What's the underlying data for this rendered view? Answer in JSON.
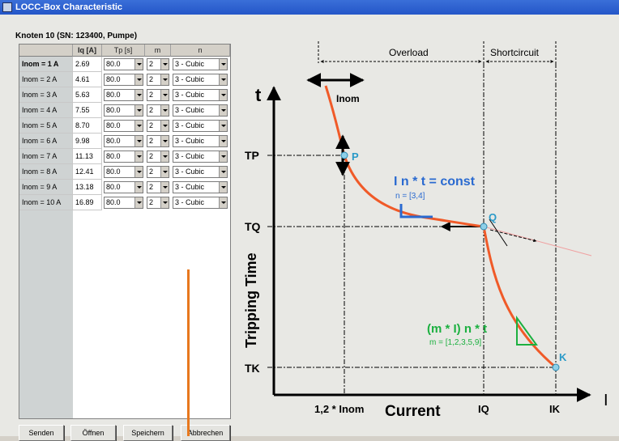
{
  "window": {
    "title": "LOCC-Box Characteristic"
  },
  "node_label": "Knoten 10 (SN: 123400, Pumpe)",
  "table": {
    "columns": [
      "Iq [A]",
      "Tp [s]",
      "m",
      "n"
    ],
    "rows": [
      {
        "label": "Inom = 1 A",
        "iq": "2.69",
        "tp": "80.0",
        "m": "2",
        "n": "3 - Cubic"
      },
      {
        "label": "Inom = 2 A",
        "iq": "4.61",
        "tp": "80.0",
        "m": "2",
        "n": "3 - Cubic"
      },
      {
        "label": "Inom = 3 A",
        "iq": "5.63",
        "tp": "80.0",
        "m": "2",
        "n": "3 - Cubic"
      },
      {
        "label": "Inom = 4 A",
        "iq": "7.55",
        "tp": "80.0",
        "m": "2",
        "n": "3 - Cubic"
      },
      {
        "label": "Inom = 5 A",
        "iq": "8.70",
        "tp": "80.0",
        "m": "2",
        "n": "3 - Cubic"
      },
      {
        "label": "Inom = 6 A",
        "iq": "9.98",
        "tp": "80.0",
        "m": "2",
        "n": "3 - Cubic"
      },
      {
        "label": "Inom = 7 A",
        "iq": "11.13",
        "tp": "80.0",
        "m": "2",
        "n": "3 - Cubic"
      },
      {
        "label": "Inom = 8 A",
        "iq": "12.41",
        "tp": "80.0",
        "m": "2",
        "n": "3 - Cubic"
      },
      {
        "label": "Inom = 9 A",
        "iq": "13.18",
        "tp": "80.0",
        "m": "2",
        "n": "3 - Cubic"
      },
      {
        "label": "Inom = 10 A",
        "iq": "16.89",
        "tp": "80.0",
        "m": "2",
        "n": "3 - Cubic"
      }
    ]
  },
  "buttons": {
    "send": "Senden",
    "open": "Öffnen",
    "save": "Speichern",
    "cancel": "Abbrechen"
  },
  "diagram": {
    "overload": "Overload",
    "shortcircuit": "Shortcircuit",
    "t_axis": "t",
    "i_axis": "I",
    "inom": "Inom",
    "tp": "TP",
    "tq": "TQ",
    "tk": "TK",
    "p": "P",
    "q": "Q",
    "k": "K",
    "formula1": "I n * t = const",
    "formula1_n": "n = [3,4]",
    "formula2": "(m * I) n * t",
    "formula2_m": "m = [1,2,3,5,9]",
    "ylabel": "Tripping Time",
    "xlabel": "Current",
    "x_inom": "1,2 * Inom",
    "x_iq": "IQ",
    "x_ik": "IK"
  },
  "colors": {
    "curve": "#f05a28",
    "blue": "#2a6ad0",
    "green": "#1cb040",
    "orange_line": "#e8781e",
    "point": "#4aa8c8"
  }
}
